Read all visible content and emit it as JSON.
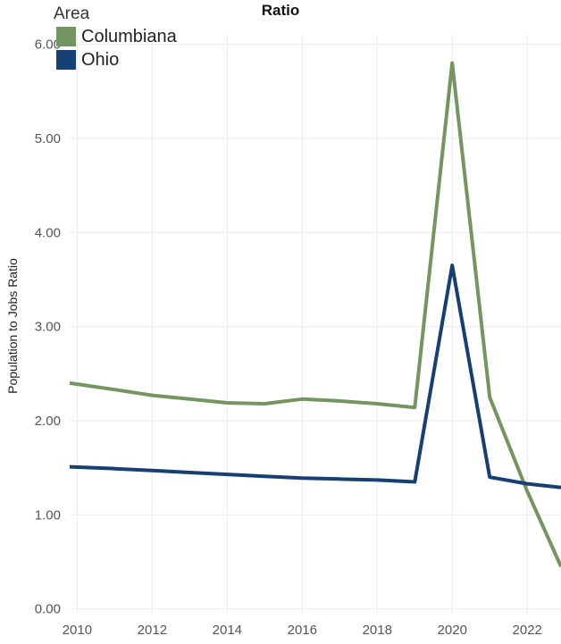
{
  "chart_data": {
    "type": "line",
    "title": "Ratio",
    "xlabel": "",
    "ylabel": "Population to Jobs Ratio",
    "legend_title": "Area",
    "legend_position": "top-left",
    "x": [
      2009.8,
      2011,
      2012,
      2013,
      2014,
      2015,
      2016,
      2017,
      2018,
      2019,
      2020,
      2021,
      2022,
      2022.9
    ],
    "series": [
      {
        "name": "Columbiana",
        "color": "#74955f",
        "values": [
          2.4,
          2.33,
          2.27,
          2.23,
          2.19,
          2.18,
          2.23,
          2.21,
          2.18,
          2.14,
          5.8,
          2.25,
          1.25,
          0.45
        ]
      },
      {
        "name": "Ohio",
        "color": "#163f73",
        "values": [
          1.51,
          1.49,
          1.47,
          1.45,
          1.43,
          1.41,
          1.39,
          1.38,
          1.37,
          1.35,
          3.65,
          1.4,
          1.33,
          1.29
        ]
      }
    ],
    "xticks": [
      "2010",
      "2012",
      "2014",
      "2016",
      "2018",
      "2020",
      "2022"
    ],
    "xtick_values": [
      2010,
      2012,
      2014,
      2016,
      2018,
      2020,
      2022
    ],
    "yticks": [
      "0.00",
      "1.00",
      "2.00",
      "3.00",
      "4.00",
      "5.00",
      "6.00"
    ],
    "ytick_values": [
      0,
      1,
      2,
      3,
      4,
      5,
      6
    ],
    "xlim": [
      2009.8,
      2022.9
    ],
    "ylim": [
      -0.05,
      6.1
    ],
    "grid": true
  }
}
